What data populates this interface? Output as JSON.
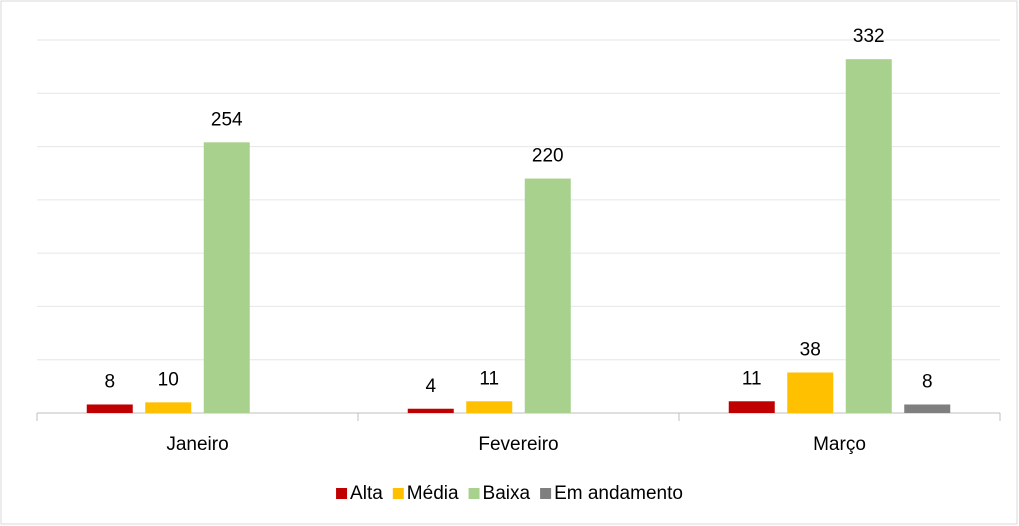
{
  "chart_data": {
    "type": "bar",
    "categories": [
      "Janeiro",
      "Fevereiro",
      "Março"
    ],
    "series": [
      {
        "name": "Alta",
        "color": "#c00000",
        "values": [
          8,
          4,
          11
        ]
      },
      {
        "name": "Média",
        "color": "#ffc000",
        "values": [
          10,
          11,
          38
        ]
      },
      {
        "name": "Baixa",
        "color": "#a9d18e",
        "values": [
          254,
          220,
          332
        ]
      },
      {
        "name": "Em andamento",
        "color": "#7f7f7f",
        "values": [
          null,
          null,
          8
        ]
      }
    ],
    "ylim": [
      0,
      350
    ],
    "yticks": [
      0,
      50,
      100,
      150,
      200,
      250,
      300,
      350
    ],
    "grid": true,
    "legend": "bottom"
  }
}
